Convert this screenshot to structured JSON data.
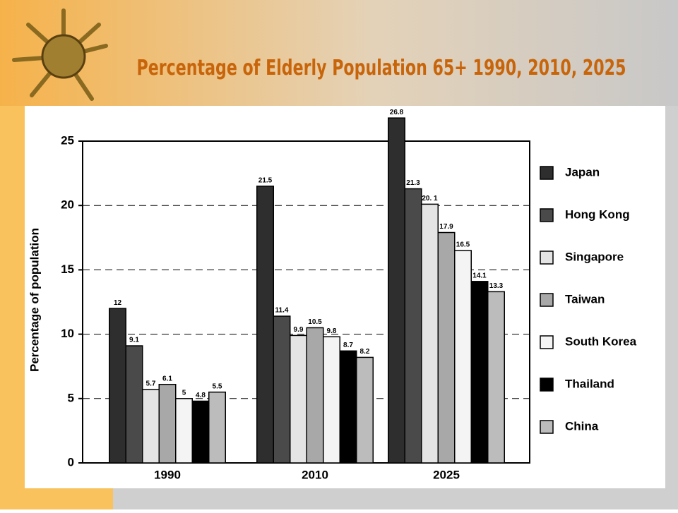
{
  "chart_data": {
    "type": "bar",
    "title": "Percentage of Elderly Population 65+  1990, 2010, 2025",
    "y_label": "Percentage of population",
    "categories": [
      "1990",
      "2010",
      "2025"
    ],
    "series": [
      {
        "name": "Japan",
        "color": "#2e2e2e",
        "values": [
          12,
          21.5,
          26.8
        ]
      },
      {
        "name": "Hong Kong",
        "color": "#4a4a4a",
        "values": [
          9.1,
          11.4,
          21.3
        ]
      },
      {
        "name": "Singapore",
        "color": "#e4e4e4",
        "values": [
          5.7,
          9.9,
          20.1
        ],
        "value_labels": [
          "5.7",
          "9.9",
          "20. 1"
        ]
      },
      {
        "name": "Taiwan",
        "color": "#a8a8a8",
        "values": [
          6.1,
          10.5,
          17.9
        ]
      },
      {
        "name": "South Korea",
        "color": "#f4f4f4",
        "values": [
          5,
          9.8,
          16.5
        ]
      },
      {
        "name": "Thailand",
        "color": "#000000",
        "values": [
          4.8,
          8.7,
          14.1
        ]
      },
      {
        "name": "China",
        "color": "#bcbcbc",
        "values": [
          5.5,
          8.2,
          13.3
        ]
      }
    ],
    "ylim": [
      0,
      25
    ],
    "yticks": [
      0,
      5,
      10,
      15,
      20,
      25
    ],
    "grid": true
  }
}
